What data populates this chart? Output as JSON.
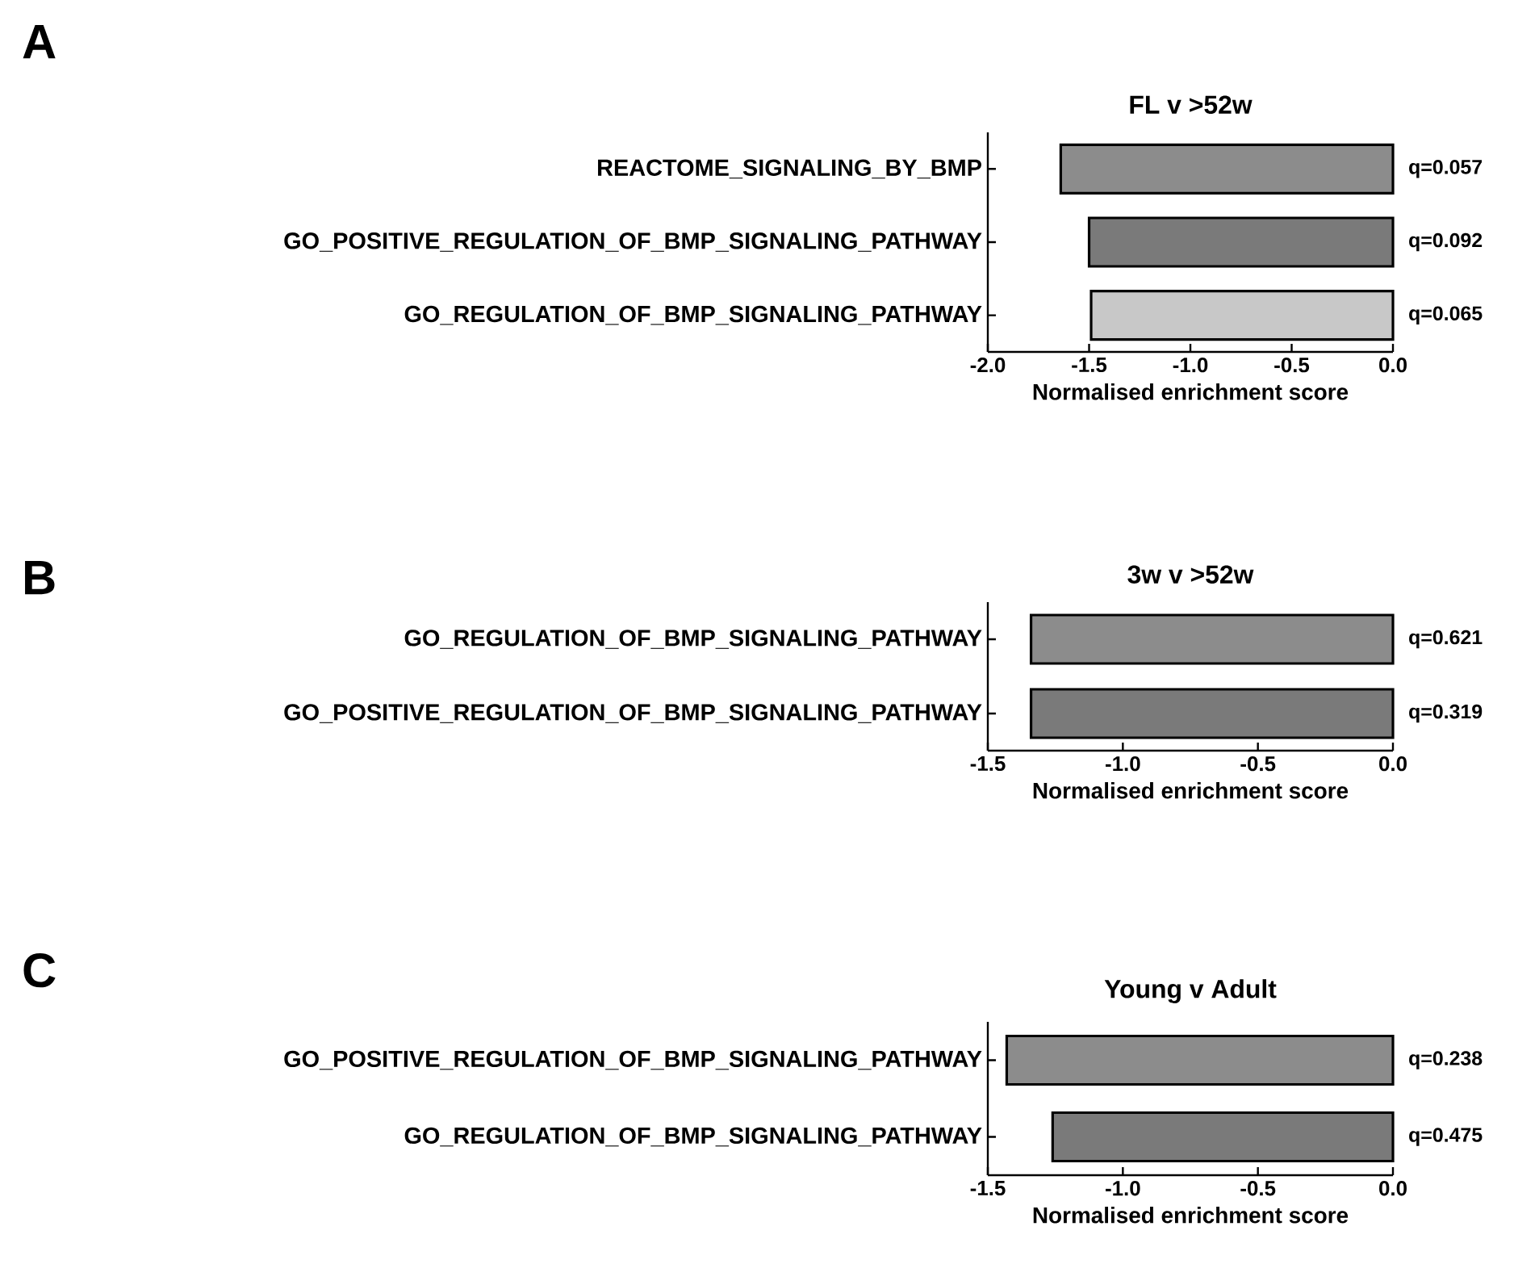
{
  "chart_data": [
    {
      "type": "bar",
      "orientation": "horizontal",
      "title": "FL v >52w",
      "xlabel": "Normalised enrichment score",
      "annotations": [
        "A",
        "q=0.057",
        "q=0.092",
        "q=0.065"
      ],
      "categories": [
        "REACTOME_SIGNALING_BY_BMP",
        "GO_POSITIVE_REGULATION_OF_BMP_SIGNALING_PATHWAY",
        "GO_REGULATION_OF_BMP_SIGNALING_PATHWAY"
      ],
      "values": [
        -1.64,
        -1.5,
        -1.49
      ],
      "colors": [
        "#8c8c8c",
        "#7a7a7a",
        "#c8c8c8"
      ],
      "xlim": [
        -2.0,
        0.0
      ],
      "xticks": [
        {
          "value": -2.0,
          "label": "-2.0"
        },
        {
          "value": -1.5,
          "label": "-1.5"
        },
        {
          "value": -1.0,
          "label": "-1.0"
        },
        {
          "value": -0.5,
          "label": "-0.5"
        },
        {
          "value": 0.0,
          "label": "0.0"
        }
      ]
    },
    {
      "type": "bar",
      "orientation": "horizontal",
      "title": "3w v >52w",
      "xlabel": "Normalised enrichment score",
      "annotations": [
        "B",
        "q=0.621",
        "q=0.319"
      ],
      "categories": [
        "GO_REGULATION_OF_BMP_SIGNALING_PATHWAY",
        "GO_POSITIVE_REGULATION_OF_BMP_SIGNALING_PATHWAY"
      ],
      "values": [
        -1.34,
        -1.34
      ],
      "colors": [
        "#8c8c8c",
        "#7a7a7a"
      ],
      "xlim": [
        -1.5,
        0.0
      ],
      "xticks": [
        {
          "value": -1.5,
          "label": "-1.5"
        },
        {
          "value": -1.0,
          "label": "-1.0"
        },
        {
          "value": -0.5,
          "label": "-0.5"
        },
        {
          "value": 0.0,
          "label": "0.0"
        }
      ]
    },
    {
      "type": "bar",
      "orientation": "horizontal",
      "title": "Young v Adult",
      "xlabel": "Normalised enrichment score",
      "annotations": [
        "C",
        "q=0.238",
        "q=0.475"
      ],
      "categories": [
        "GO_POSITIVE_REGULATION_OF_BMP_SIGNALING_PATHWAY",
        "GO_REGULATION_OF_BMP_SIGNALING_PATHWAY"
      ],
      "values": [
        -1.43,
        -1.26
      ],
      "colors": [
        "#8c8c8c",
        "#7a7a7a"
      ],
      "xlim": [
        -1.5,
        0.0
      ],
      "xticks": [
        {
          "value": -1.5,
          "label": "-1.5"
        },
        {
          "value": -1.0,
          "label": "-1.0"
        },
        {
          "value": -0.5,
          "label": "-0.5"
        },
        {
          "value": 0.0,
          "label": "0.0"
        }
      ]
    }
  ]
}
